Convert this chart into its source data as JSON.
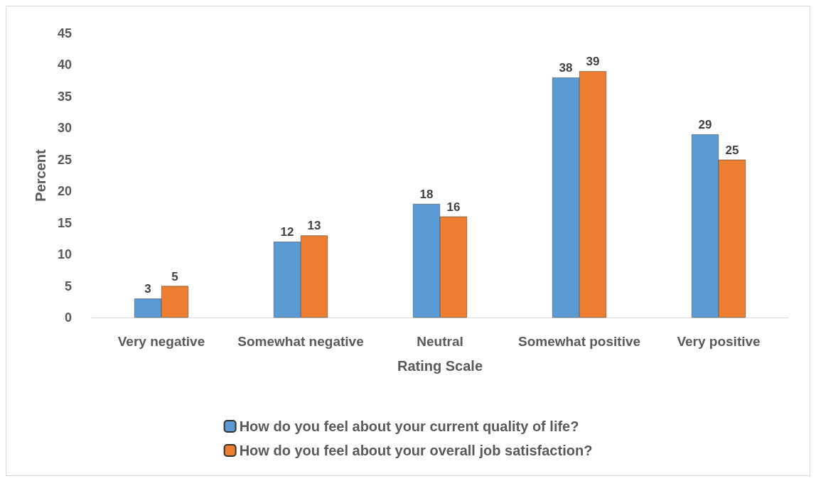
{
  "chart_data": {
    "type": "bar",
    "xlabel": "Rating Scale",
    "ylabel": "Percent",
    "categories": [
      "Very negative",
      "Somewhat negative",
      "Neutral",
      "Somewhat positive",
      "Very positive"
    ],
    "series": [
      {
        "name": "How do you feel about your current quality of life?",
        "color": "#5b9bd5",
        "values": [
          3,
          12,
          18,
          38,
          29
        ]
      },
      {
        "name": "How do you feel about your overall job satisfaction?",
        "color": "#ed7d31",
        "values": [
          5,
          13,
          16,
          39,
          25
        ]
      }
    ],
    "ylim": [
      0,
      45
    ],
    "yticks": [
      0,
      5,
      10,
      15,
      20,
      25,
      30,
      35,
      40,
      45
    ],
    "data_labels": true,
    "grid": false,
    "legend": "bottom"
  }
}
